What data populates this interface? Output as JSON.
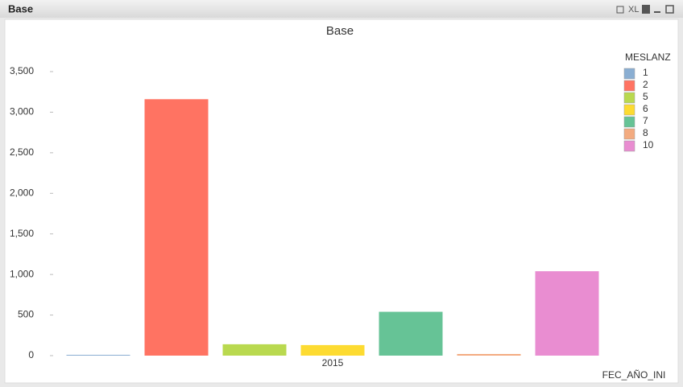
{
  "window": {
    "caption": "Base",
    "export_label": "XL"
  },
  "chart_data": {
    "type": "bar",
    "title": "Base",
    "x_label": "FEC_AÑO_INI",
    "legend_title": "MESLANZ",
    "categories": [
      "2015"
    ],
    "series": [
      {
        "name": "1",
        "color": "#8aaed2",
        "values": [
          10
        ]
      },
      {
        "name": "2",
        "color": "#ff7362",
        "values": [
          3160
        ]
      },
      {
        "name": "5",
        "color": "#b9d94f",
        "values": [
          140
        ]
      },
      {
        "name": "6",
        "color": "#fddb31",
        "values": [
          130
        ]
      },
      {
        "name": "7",
        "color": "#66c396",
        "values": [
          540
        ]
      },
      {
        "name": "8",
        "color": "#f3ab80",
        "values": [
          20
        ]
      },
      {
        "name": "10",
        "color": "#e98dd1",
        "values": [
          1040
        ]
      }
    ],
    "ylim": [
      0,
      3500
    ],
    "yticks": [
      0,
      500,
      {
        "value": 1000,
        "label": "1,000"
      },
      {
        "value": 1500,
        "label": "1,500"
      },
      {
        "value": 2000,
        "label": "2,000"
      },
      {
        "value": 2500,
        "label": "2,500"
      },
      {
        "value": 3000,
        "label": "3,000"
      },
      {
        "value": 3500,
        "label": "3,500"
      }
    ],
    "legend": "top-right",
    "grid": false
  }
}
